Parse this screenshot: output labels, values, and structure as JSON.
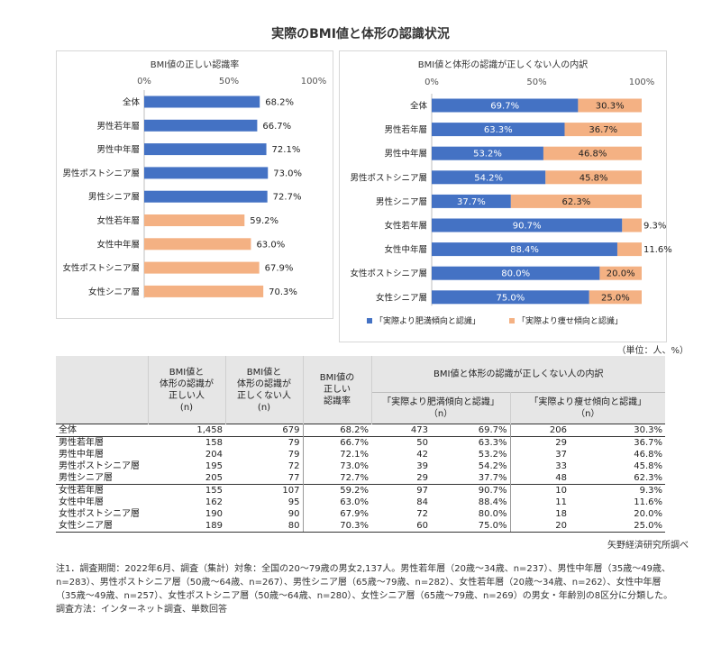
{
  "page": {
    "title": "実際のBMI値と体形の認識状況"
  },
  "chart_data": [
    {
      "type": "bar",
      "orientation": "horizontal",
      "title": "BMI値の正しい認識率",
      "categories": [
        "全体",
        "男性若年層",
        "男性中年層",
        "男性ポストシニア層",
        "男性シニア層",
        "女性若年層",
        "女性中年層",
        "女性ポストシニア層",
        "女性シニア層"
      ],
      "values": [
        68.2,
        66.7,
        72.1,
        73.0,
        72.7,
        59.2,
        63.0,
        67.9,
        70.3
      ],
      "value_labels": [
        "68.2%",
        "66.7%",
        "72.1%",
        "73.0%",
        "72.7%",
        "59.2%",
        "63.0%",
        "67.9%",
        "70.3%"
      ],
      "bar_colors": [
        "#4472c4",
        "#4472c4",
        "#4472c4",
        "#4472c4",
        "#4472c4",
        "#f4b183",
        "#f4b183",
        "#f4b183",
        "#f4b183"
      ],
      "x_ticks": [
        "0%",
        "50%",
        "100%"
      ],
      "xlim": [
        0,
        100
      ]
    },
    {
      "type": "bar",
      "orientation": "horizontal",
      "stacked": true,
      "title": "BMI値と体形の認識が正しくない人の内訳",
      "categories": [
        "全体",
        "男性若年層",
        "男性中年層",
        "男性ポストシニア層",
        "男性シニア層",
        "女性若年層",
        "女性中年層",
        "女性ポストシニア層",
        "女性シニア層"
      ],
      "series": [
        {
          "name": "「実際より肥満傾向と認識」",
          "color": "#4472c4",
          "values": [
            69.7,
            63.3,
            53.2,
            54.2,
            37.7,
            90.7,
            88.4,
            80.0,
            75.0
          ],
          "labels": [
            "69.7%",
            "63.3%",
            "53.2%",
            "54.2%",
            "37.7%",
            "90.7%",
            "88.4%",
            "80.0%",
            "75.0%"
          ]
        },
        {
          "name": "「実際より痩せ傾向と認識」",
          "color": "#f4b183",
          "values": [
            30.3,
            36.7,
            46.8,
            45.8,
            62.3,
            9.3,
            11.6,
            20.0,
            25.0
          ],
          "labels": [
            "30.3%",
            "36.7%",
            "46.8%",
            "45.8%",
            "62.3%",
            "9.3%",
            "11.6%",
            "20.0%",
            "25.0%"
          ]
        }
      ],
      "x_ticks": [
        "0%",
        "50%",
        "100%"
      ],
      "xlim": [
        0,
        100
      ],
      "legend_position": "bottom"
    }
  ],
  "table": {
    "unit": "（単位：人、%）",
    "headers": {
      "col1": "BMI値と\n体形の認識が\n正しい人\n(n)",
      "col2": "BMI値と\n体形の認識が\n正しくない人\n(n)",
      "col3": "BMI値の\n正しい\n認識率",
      "group": "BMI値と体形の認識が正しくない人の内訳",
      "sub1": "「実際より肥満傾向と認識」\n（n）",
      "sub2": "「実際より痩せ傾向と認識」\n（n）"
    },
    "rows": [
      {
        "cat": "全体",
        "correct": "1,458",
        "incorrect": "679",
        "rate": "68.2%",
        "obese_n": "473",
        "obese_pct": "69.7%",
        "thin_n": "206",
        "thin_pct": "30.3%"
      },
      {
        "cat": "男性若年層",
        "correct": "158",
        "incorrect": "79",
        "rate": "66.7%",
        "obese_n": "50",
        "obese_pct": "63.3%",
        "thin_n": "29",
        "thin_pct": "36.7%"
      },
      {
        "cat": "男性中年層",
        "correct": "204",
        "incorrect": "79",
        "rate": "72.1%",
        "obese_n": "42",
        "obese_pct": "53.2%",
        "thin_n": "37",
        "thin_pct": "46.8%"
      },
      {
        "cat": "男性ポストシニア層",
        "correct": "195",
        "incorrect": "72",
        "rate": "73.0%",
        "obese_n": "39",
        "obese_pct": "54.2%",
        "thin_n": "33",
        "thin_pct": "45.8%"
      },
      {
        "cat": "男性シニア層",
        "correct": "205",
        "incorrect": "77",
        "rate": "72.7%",
        "obese_n": "29",
        "obese_pct": "37.7%",
        "thin_n": "48",
        "thin_pct": "62.3%"
      },
      {
        "cat": "女性若年層",
        "correct": "155",
        "incorrect": "107",
        "rate": "59.2%",
        "obese_n": "97",
        "obese_pct": "90.7%",
        "thin_n": "10",
        "thin_pct": "9.3%"
      },
      {
        "cat": "女性中年層",
        "correct": "162",
        "incorrect": "95",
        "rate": "63.0%",
        "obese_n": "84",
        "obese_pct": "88.4%",
        "thin_n": "11",
        "thin_pct": "11.6%"
      },
      {
        "cat": "女性ポストシニア層",
        "correct": "190",
        "incorrect": "90",
        "rate": "67.9%",
        "obese_n": "72",
        "obese_pct": "80.0%",
        "thin_n": "18",
        "thin_pct": "20.0%"
      },
      {
        "cat": "女性シニア層",
        "correct": "189",
        "incorrect": "80",
        "rate": "70.3%",
        "obese_n": "60",
        "obese_pct": "75.0%",
        "thin_n": "20",
        "thin_pct": "25.0%"
      }
    ],
    "source": "矢野経済研究所調べ"
  },
  "note": "注1．調査期間：2022年6月、調査（集計）対象：全国の20～79歳の男女2,137人。男性若年層（20歳～34歳、n=237）、男性中年層（35歳～49歳、n=283）、男性ポストシニア層（50歳～64歳、n=267）、男性シニア層（65歳～79歳、n=282）、女性若年層（20歳～34歳、n=262）、女性中年層（35歳～49歳、n=257）、女性ポストシニア層（50歳～64歳、n=280）、女性シニア層（65歳～79歳、n=269）の男女・年齢別の8区分に分類した。調査方法：インターネット調査、単数回答"
}
